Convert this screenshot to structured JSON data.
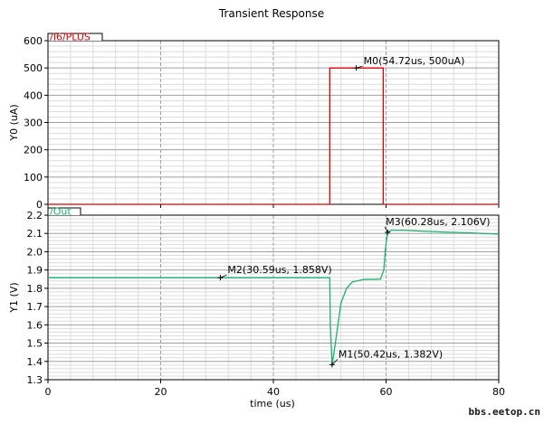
{
  "title": "Transient Response",
  "watermark": "bbs.eetop.cn",
  "xlabel": "time (us)",
  "colors": {
    "top_series": "#e00000",
    "bottom_series": "#16b46a",
    "frame": "#000000",
    "grid_major": "#a0a0a0",
    "grid_minor": "#dcdcdc"
  },
  "chart_data": [
    {
      "type": "line",
      "legend": "/I6/PLUS",
      "ylabel": "Y0 (uA)",
      "xlim": [
        0,
        80
      ],
      "ylim": [
        0,
        600
      ],
      "x_ticks": [
        0,
        20,
        40,
        60,
        80
      ],
      "y_ticks": [
        "0",
        "100",
        "200",
        "300",
        "400",
        "500",
        "600"
      ],
      "y_tick_values": [
        0,
        100,
        200,
        300,
        400,
        500,
        600
      ],
      "grid": true,
      "series": [
        {
          "x": [
            0,
            50.0,
            50.0,
            59.5,
            59.5,
            60.0,
            80
          ],
          "y": [
            0,
            0,
            500,
            500,
            0,
            0,
            0
          ]
        }
      ],
      "markers": [
        {
          "label": "M0(54.72us, 500uA)",
          "x": 54.72,
          "y": 500
        }
      ]
    },
    {
      "type": "line",
      "legend": "/Out",
      "ylabel": "Y1 (V)",
      "xlim": [
        0,
        80
      ],
      "ylim": [
        1.3,
        2.2
      ],
      "x_ticks": [
        0,
        20,
        40,
        60,
        80
      ],
      "x_tick_labels": [
        "0",
        "20",
        "40",
        "60",
        "80"
      ],
      "y_ticks": [
        "1.3",
        "1.4",
        "1.5",
        "1.6",
        "1.7",
        "1.8",
        "1.9",
        "2.0",
        "2.1",
        "2.2"
      ],
      "y_tick_values": [
        1.3,
        1.4,
        1.5,
        1.6,
        1.7,
        1.8,
        1.9,
        2.0,
        2.1,
        2.2
      ],
      "grid": true,
      "series": [
        {
          "x": [
            0,
            50.0,
            50.1,
            50.42,
            51.0,
            52.0,
            53.0,
            54.0,
            56.0,
            59.0,
            59.6,
            59.9,
            60.28,
            61.0,
            63.0,
            66.0,
            70.0,
            75.0,
            80.0
          ],
          "y": [
            1.858,
            1.858,
            1.6,
            1.382,
            1.5,
            1.72,
            1.8,
            1.835,
            1.848,
            1.85,
            1.9,
            2.02,
            2.106,
            2.118,
            2.118,
            2.113,
            2.108,
            2.103,
            2.096
          ]
        }
      ],
      "markers": [
        {
          "label": "M2(30.59us, 1.858V)",
          "x": 30.59,
          "y": 1.858
        },
        {
          "label": "M1(50.42us, 1.382V)",
          "x": 50.42,
          "y": 1.382
        },
        {
          "label": "M3(60.28us, 2.106V)",
          "x": 60.28,
          "y": 2.106
        }
      ]
    }
  ]
}
